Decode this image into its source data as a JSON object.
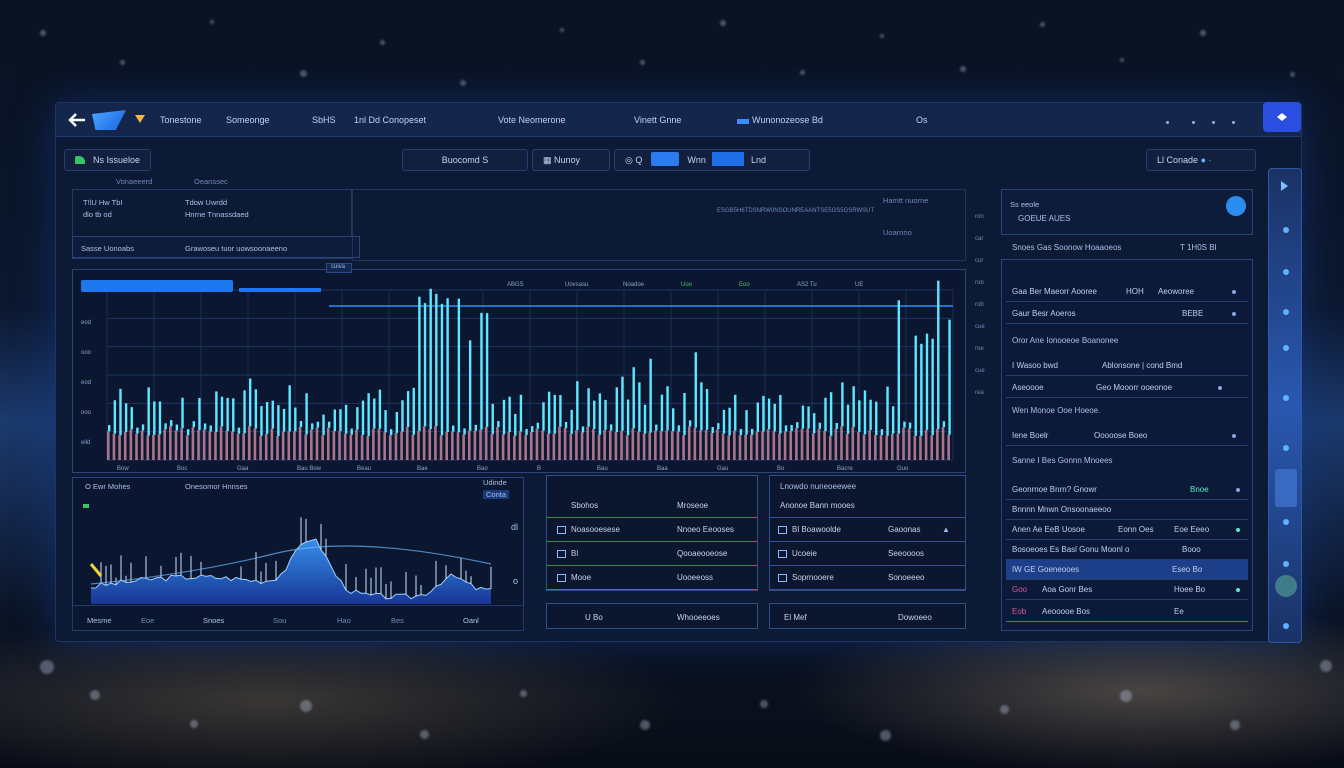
{
  "topbar": {
    "items": [
      "Tonestone",
      "Someonge",
      "SbHS",
      "1nl Dd Conopeset",
      "Vote Neomerone",
      "Vinett Gnne",
      "Wunonozeose Bd",
      "Os"
    ]
  },
  "toolbar": {
    "status": "Ns Issueloe",
    "filter": "Buocomd S",
    "menu": "Nunoy",
    "q_label": "Q",
    "toggle_label": "Wnn",
    "toggle_after": "Lnd",
    "right_chip": "Ll Conade"
  },
  "chart_top": {
    "head_a": "Vonaeeerd",
    "head_b": "Oeanssec",
    "meta_1": "T!lU  Hw  TbI",
    "meta_2": "dlo  tb  od",
    "meta_3": "Tdow  Uwrdd",
    "meta_4": "Hnrne  Tnnassdaed",
    "search_a": "Sasse  Uonoabs",
    "search_b": "Grawoseu tuor uowsoonaeeno",
    "right_note": "ESGB5H6TDSNRW0NSOUNREAANTSE5GS5GSRWSUT",
    "right_note2": "Hamtt  nuorne",
    "right_note3": "Uoarnno",
    "tick_strip": [
      "ABGS",
      "Uovsasu",
      "Noadoe",
      "Uoo",
      "Eoo",
      "AS2 Tu",
      "UE"
    ],
    "active_tab": "cuiva",
    "y_ticks": [
      "eod",
      "ooo",
      "eod",
      "ooo",
      "elld"
    ],
    "y_ticks_right": [
      "ron",
      "car",
      "cor",
      "rob",
      "rob",
      "cue",
      "roe",
      "cue",
      "rea"
    ],
    "x_ticks": [
      "Bow",
      "Boc",
      "Gaa",
      "Bau Bow",
      "Beau",
      "Bae",
      "Bao",
      "B",
      "Bau",
      "Baa",
      "Gau",
      "Bo",
      "Bacre",
      "Guo"
    ]
  },
  "chart_bottom": {
    "title_a": "O  Ewr Mohes",
    "title_b": "Onesomor Hnnses",
    "tag": "Udinde",
    "tag2": "Conta",
    "side_icons": [
      "dl",
      "o"
    ],
    "x_labels": [
      "Mesme",
      "Eoe",
      "Snoes",
      "Sou",
      "Hao",
      "Bes",
      "Oanl"
    ]
  },
  "table_a": {
    "rows": [
      {
        "a": "Sbohos",
        "b": "Mroseoe"
      },
      {
        "a": "Noasooesese",
        "b": "Nnoeo Eeooses"
      },
      {
        "a": "Bl",
        "b": "Qooaeooeose"
      },
      {
        "a": "Mooe",
        "b": "Uooeeoss"
      }
    ],
    "footer_a": "U Bo",
    "footer_b": "Whooeeoes"
  },
  "table_b": {
    "header": "Lnowdo nuneoeewee",
    "rows": [
      {
        "a": "Anonoe  Bann mooes",
        "b": ""
      },
      {
        "a": "Bl Boawoolde",
        "b": "Gaoonas"
      },
      {
        "a": "Ucoeie",
        "b": "Seeoooos"
      },
      {
        "a": "Soprnooere",
        "b": "Sonoeeeo"
      }
    ],
    "footer_a": "El Mef",
    "footer_b": "Dowoeeo"
  },
  "right_panel": {
    "card_title": "Ss  eeole",
    "card_sub": "GOEUE AUES",
    "list_head": "Snoes  Gas  Soonow Hoaaoeos",
    "list_head_val": "T 1H0S  BI",
    "groups": [
      {
        "title": "",
        "rows": [
          {
            "a": "Gaa  Ber Maeorr Aooree",
            "b": "HOH",
            "c": "Aeoworee"
          },
          {
            "a": "Gaur  Besr  Aoeros",
            "b": "",
            "c": "BEBE"
          }
        ]
      },
      {
        "title": "Oror  Ane Ionooeoe  Boanonee",
        "rows": [
          {
            "a": "I Wasoo bwd",
            "b": "Ablonsone | cond  Bmd",
            "c": ""
          },
          {
            "a": "Aseoooe",
            "b": "Geo Mooorr ooeonoe",
            "c": ""
          }
        ]
      },
      {
        "title": "Wen Monoe Ooe Hoeoe.",
        "rows": [
          {
            "a": "Iene Boelr",
            "b": "Ooooose Boeo",
            "c": ""
          }
        ]
      },
      {
        "title": "Sanne  I Bes  Gonnn Mnoees",
        "rows": [
          {
            "a": "Geonrnoe Bnrn? Gnowr",
            "b": "",
            "c": "Bnoe"
          },
          {
            "a": "Bnnnn  Mnwn  Onsoonaeeoo",
            "b": "",
            "c": ""
          },
          {
            "a": "Anen Ae  EeB  Uosoe",
            "b": "Eonn Oes",
            "c": "Eoe Eeeo"
          },
          {
            "a": "Bosoeoes Es  Basl  Gonu  Moonl o",
            "b": "",
            "c": "Booo"
          },
          {
            "a": "IW   GE  Goeneooes",
            "b": "",
            "c": "Eseo Bo"
          },
          {
            "a": "Goo",
            "b": "Aoa  Gonr  Bes",
            "c": "Hoee Bo"
          },
          {
            "a": "Eob",
            "b": "Aeooooe  Bos",
            "c": "Ee"
          }
        ]
      }
    ]
  },
  "colors": {
    "accent": "#3a8cff",
    "cyan": "#5ee8ff",
    "rose": "#c7869a",
    "panel": "#0d1a36"
  }
}
